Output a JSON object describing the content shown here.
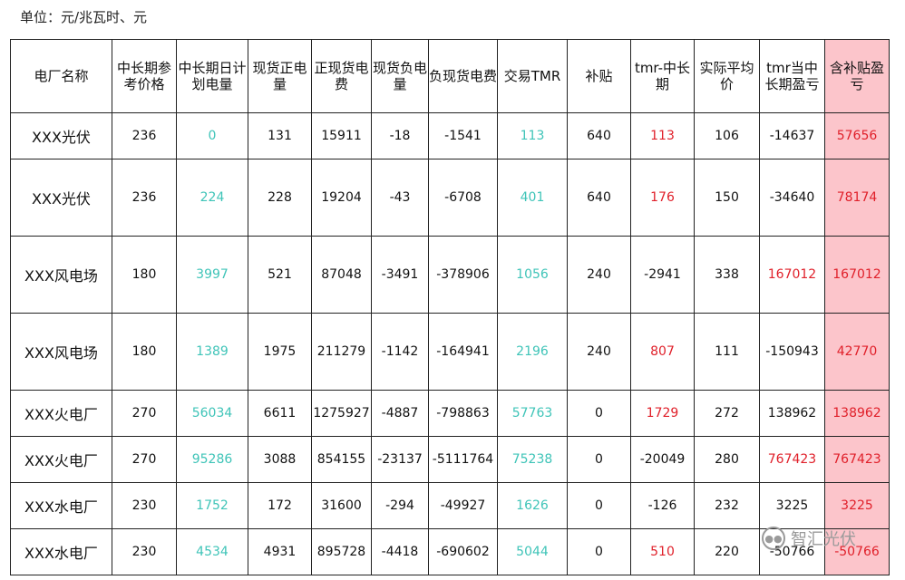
{
  "unit_label": "单位：元/兆瓦时、元",
  "headers": [
    "电厂名称",
    "中长期参考价格",
    "中长期日计划电量",
    "现货正电量",
    "正现货电费",
    "现货负电量",
    "负现货电费",
    "交易TMR",
    "补贴",
    "tmr-中长期",
    "实际平均价",
    "tmr当中长期盈亏",
    "含补贴盈亏"
  ],
  "colors": {
    "teal": "#3fc4b8",
    "red": "#e0202a",
    "highlight": "#fcc5cb"
  },
  "rows": [
    [
      "XXX光伏",
      "236",
      "0",
      "131",
      "15911",
      "-18",
      "-1541",
      "113",
      "640",
      "113",
      "106",
      "-14637",
      "57656"
    ],
    [
      "XXX光伏",
      "236",
      "224",
      "228",
      "19204",
      "-43",
      "-6708",
      "401",
      "640",
      "176",
      "150",
      "-34640",
      "78174"
    ],
    [
      "XXX风电场",
      "180",
      "3997",
      "521",
      "87048",
      "-3491",
      "-378906",
      "1056",
      "240",
      "-2941",
      "338",
      "167012",
      "167012"
    ],
    [
      "XXX风电场",
      "180",
      "1389",
      "1975",
      "211279",
      "-1142",
      "-164941",
      "2196",
      "240",
      "807",
      "111",
      "-150943",
      "42770"
    ],
    [
      "XXX火电厂",
      "270",
      "56034",
      "6611",
      "1275927",
      "-4887",
      "-798863",
      "57763",
      "0",
      "1729",
      "272",
      "138962",
      "138962"
    ],
    [
      "XXX火电厂",
      "270",
      "95286",
      "3088",
      "854155",
      "-23137",
      "-5111764",
      "75238",
      "0",
      "-20049",
      "280",
      "767423",
      "767423"
    ],
    [
      "XXX水电厂",
      "230",
      "1752",
      "172",
      "31600",
      "-294",
      "-49927",
      "1626",
      "0",
      "-126",
      "232",
      "3225",
      "3225"
    ],
    [
      "XXX水电厂",
      "230",
      "4534",
      "4931",
      "895728",
      "-4418",
      "-690602",
      "5044",
      "0",
      "510",
      "220",
      "-50766",
      "-50766"
    ]
  ],
  "watermark": "智汇光伏"
}
